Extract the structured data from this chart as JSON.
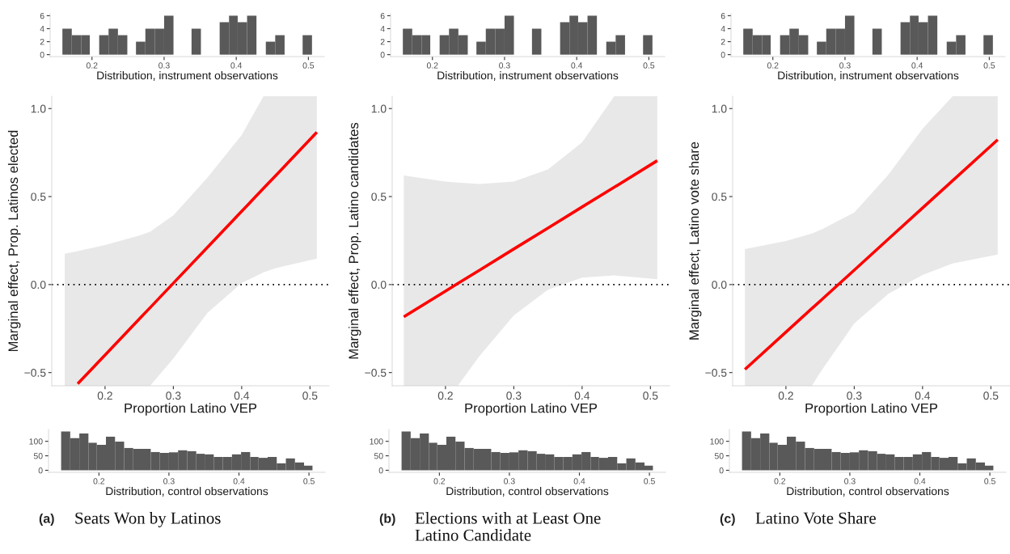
{
  "chart_data": [
    {
      "type": "histogram",
      "xlabel": "Distribution, instrument observations",
      "color": "#595959",
      "bins": [
        0.159,
        0.172,
        0.185,
        0.197,
        0.21,
        0.223,
        0.236,
        0.249,
        0.261,
        0.274,
        0.287,
        0.3,
        0.313,
        0.338,
        0.351,
        0.377,
        0.39,
        0.402,
        0.415,
        0.428,
        0.441,
        0.454,
        0.467,
        0.492,
        0.505
      ],
      "values": [
        4,
        3,
        3,
        0,
        3,
        4,
        3,
        0,
        2,
        4,
        4,
        6,
        0,
        4,
        0,
        5,
        6,
        5,
        6,
        0,
        2,
        3,
        0,
        3
      ],
      "xlim": [
        0.142,
        0.522
      ],
      "ylim": [
        -0.3,
        6.3
      ],
      "xticks": [
        0.2,
        0.3,
        0.4,
        0.5
      ],
      "yticks": [
        0,
        2,
        4,
        6
      ],
      "grid": false
    },
    {
      "type": "line",
      "xlabel": "Proportion Latino VEP",
      "ylabel": "Marginal effect, Prop. Latinos elected",
      "series": [
        {
          "color": "#ff0000",
          "x": [
            0.141,
            0.16,
            0.2,
            0.25,
            0.266,
            0.3,
            0.35,
            0.4,
            0.432,
            0.45,
            0.51
          ],
          "values": [
            null,
            -0.563,
            -0.4,
            -0.196,
            -0.131,
            0.008,
            0.212,
            0.416,
            0.547,
            0.62,
            0.865
          ],
          "lower": [
            -0.575,
            -0.575,
            -0.575,
            -0.575,
            -0.575,
            -0.42,
            -0.16,
            0.009,
            0.07,
            0.094,
            0.147
          ],
          "upper": [
            0.175,
            0.19,
            0.224,
            0.278,
            0.3,
            0.393,
            0.608,
            0.85,
            1.07,
            1.07,
            1.07
          ]
        }
      ],
      "ref_lines": [
        {
          "axis": "y",
          "value": 0,
          "color": "#000000",
          "line_style": "dotted"
        }
      ],
      "xlim": [
        0.122,
        0.528
      ],
      "ylim": [
        -0.575,
        1.07
      ],
      "xticks": [
        0.2,
        0.3,
        0.4,
        0.5
      ],
      "yticks": [
        {
          "value": -0.5,
          "label": "−0.5"
        },
        {
          "value": 0,
          "label": "0.0"
        },
        {
          "value": 0.5,
          "label": "0.5"
        },
        {
          "value": 1.0,
          "label": "1.0"
        }
      ],
      "grid": false
    },
    {
      "type": "histogram",
      "xlabel": "Distribution, control observations",
      "color": "#595959",
      "bins": [
        0.146,
        0.159,
        0.172,
        0.185,
        0.197,
        0.21,
        0.223,
        0.236,
        0.249,
        0.262,
        0.274,
        0.287,
        0.3,
        0.313,
        0.326,
        0.339,
        0.351,
        0.364,
        0.377,
        0.39,
        0.403,
        0.416,
        0.428,
        0.441,
        0.454,
        0.467,
        0.48,
        0.493,
        0.505
      ],
      "values": [
        134,
        111,
        127,
        95,
        88,
        116,
        99,
        77,
        74,
        74,
        63,
        60,
        62,
        69,
        66,
        57,
        55,
        46,
        46,
        55,
        63,
        46,
        43,
        46,
        24,
        41,
        27,
        16
      ],
      "xlim": [
        0.128,
        0.523
      ],
      "ylim": [
        -7,
        141
      ],
      "xticks": [
        0.2,
        0.3,
        0.4,
        0.5
      ],
      "yticks": [
        0,
        50,
        100
      ],
      "grid": false,
      "annotations": [
        "(a)",
        "Seats Won by Latinos"
      ]
    },
    {
      "type": "histogram",
      "xlabel": "Distribution, instrument observations",
      "color": "#595959",
      "bins": [
        0.159,
        0.172,
        0.185,
        0.197,
        0.21,
        0.223,
        0.236,
        0.249,
        0.261,
        0.274,
        0.287,
        0.3,
        0.313,
        0.338,
        0.351,
        0.377,
        0.39,
        0.402,
        0.415,
        0.428,
        0.441,
        0.454,
        0.467,
        0.492,
        0.505
      ],
      "values": [
        4,
        3,
        3,
        0,
        3,
        4,
        3,
        0,
        2,
        4,
        4,
        6,
        0,
        4,
        0,
        5,
        6,
        5,
        6,
        0,
        2,
        3,
        0,
        3
      ],
      "xlim": [
        0.142,
        0.522
      ],
      "ylim": [
        -0.3,
        6.3
      ],
      "xticks": [
        0.2,
        0.3,
        0.4,
        0.5
      ],
      "yticks": [
        0,
        2,
        4,
        6
      ],
      "grid": false
    },
    {
      "type": "line",
      "xlabel": "Proportion Latino VEP",
      "ylabel": "Marginal effect, Prop. Latino candidates",
      "series": [
        {
          "color": "#ff0000",
          "x": [
            0.139,
            0.2,
            0.218,
            0.25,
            0.3,
            0.35,
            0.4,
            0.447,
            0.51
          ],
          "values": [
            -0.183,
            -0.037,
            0.006,
            0.082,
            0.202,
            0.321,
            0.441,
            0.553,
            0.704
          ],
          "lower": [
            -0.575,
            -0.575,
            -0.575,
            -0.405,
            -0.175,
            -0.029,
            0.04,
            0.052,
            0.03
          ],
          "upper": [
            0.62,
            0.585,
            0.58,
            0.572,
            0.585,
            0.654,
            0.808,
            1.07,
            1.07
          ]
        }
      ],
      "ref_lines": [
        {
          "axis": "y",
          "value": 0,
          "color": "#000000",
          "line_style": "dotted"
        }
      ],
      "xlim": [
        0.122,
        0.528
      ],
      "ylim": [
        -0.575,
        1.07
      ],
      "xticks": [
        0.2,
        0.3,
        0.4,
        0.5
      ],
      "yticks": [
        {
          "value": -0.5,
          "label": "−0.5"
        },
        {
          "value": 0,
          "label": "0.0"
        },
        {
          "value": 0.5,
          "label": "0.5"
        },
        {
          "value": 1.0,
          "label": "1.0"
        }
      ],
      "grid": false
    },
    {
      "type": "histogram",
      "xlabel": "Distribution, control observations",
      "color": "#595959",
      "bins": [
        0.146,
        0.159,
        0.172,
        0.185,
        0.197,
        0.21,
        0.223,
        0.236,
        0.249,
        0.262,
        0.274,
        0.287,
        0.3,
        0.313,
        0.326,
        0.339,
        0.351,
        0.364,
        0.377,
        0.39,
        0.403,
        0.416,
        0.428,
        0.441,
        0.454,
        0.467,
        0.48,
        0.493,
        0.505
      ],
      "values": [
        134,
        111,
        127,
        95,
        88,
        116,
        99,
        77,
        74,
        74,
        63,
        60,
        62,
        69,
        66,
        57,
        55,
        46,
        46,
        55,
        63,
        46,
        43,
        46,
        24,
        41,
        27,
        16
      ],
      "xlim": [
        0.128,
        0.523
      ],
      "ylim": [
        -7,
        141
      ],
      "xticks": [
        0.2,
        0.3,
        0.4,
        0.5
      ],
      "yticks": [
        0,
        50,
        100
      ],
      "grid": false,
      "annotations": [
        "(b)",
        "Elections with at Least One\nLatino Candidate"
      ]
    },
    {
      "type": "histogram",
      "xlabel": "Distribution, instrument observations",
      "color": "#595959",
      "bins": [
        0.159,
        0.172,
        0.185,
        0.197,
        0.21,
        0.223,
        0.236,
        0.249,
        0.261,
        0.274,
        0.287,
        0.3,
        0.313,
        0.338,
        0.351,
        0.377,
        0.39,
        0.402,
        0.415,
        0.428,
        0.441,
        0.454,
        0.467,
        0.492,
        0.505
      ],
      "values": [
        4,
        3,
        3,
        0,
        3,
        4,
        3,
        0,
        2,
        4,
        4,
        6,
        0,
        4,
        0,
        5,
        6,
        5,
        6,
        0,
        2,
        3,
        0,
        3
      ],
      "xlim": [
        0.142,
        0.522
      ],
      "ylim": [
        -0.3,
        6.3
      ],
      "xticks": [
        0.2,
        0.3,
        0.4,
        0.5
      ],
      "yticks": [
        0,
        2,
        4,
        6
      ],
      "grid": false
    },
    {
      "type": "line",
      "xlabel": "Proportion Latino VEP",
      "ylabel": "Marginal effect, Latino vote share",
      "series": [
        {
          "color": "#ff0000",
          "x": [
            0.14,
            0.2,
            0.238,
            0.25,
            0.3,
            0.35,
            0.4,
            0.444,
            0.51
          ],
          "values": [
            -0.482,
            -0.27,
            -0.136,
            -0.094,
            0.082,
            0.259,
            0.435,
            0.59,
            0.823
          ],
          "lower": [
            -0.575,
            -0.575,
            -0.575,
            -0.5,
            -0.221,
            -0.052,
            0.055,
            0.12,
            0.17
          ],
          "upper": [
            0.201,
            0.247,
            0.29,
            0.309,
            0.409,
            0.624,
            0.885,
            1.07,
            1.07
          ]
        }
      ],
      "ref_lines": [
        {
          "axis": "y",
          "value": 0,
          "color": "#000000",
          "line_style": "dotted"
        }
      ],
      "xlim": [
        0.122,
        0.528
      ],
      "ylim": [
        -0.575,
        1.07
      ],
      "xticks": [
        0.2,
        0.3,
        0.4,
        0.5
      ],
      "yticks": [
        {
          "value": -0.5,
          "label": "−0.5"
        },
        {
          "value": 0,
          "label": "0.0"
        },
        {
          "value": 0.5,
          "label": "0.5"
        },
        {
          "value": 1.0,
          "label": "1.0"
        }
      ],
      "grid": false
    },
    {
      "type": "histogram",
      "xlabel": "Distribution, control observations",
      "color": "#595959",
      "bins": [
        0.146,
        0.159,
        0.172,
        0.185,
        0.197,
        0.21,
        0.223,
        0.236,
        0.249,
        0.262,
        0.274,
        0.287,
        0.3,
        0.313,
        0.326,
        0.339,
        0.351,
        0.364,
        0.377,
        0.39,
        0.403,
        0.416,
        0.428,
        0.441,
        0.454,
        0.467,
        0.48,
        0.493,
        0.505
      ],
      "values": [
        134,
        111,
        127,
        95,
        88,
        116,
        99,
        77,
        74,
        74,
        63,
        60,
        62,
        69,
        66,
        57,
        55,
        46,
        46,
        55,
        63,
        46,
        43,
        46,
        24,
        41,
        27,
        16
      ],
      "xlim": [
        0.128,
        0.523
      ],
      "ylim": [
        -7,
        141
      ],
      "xticks": [
        0.2,
        0.3,
        0.4,
        0.5
      ],
      "yticks": [
        0,
        50,
        100
      ],
      "grid": false,
      "annotations": [
        "(c)",
        "Latino Vote Share"
      ]
    }
  ]
}
